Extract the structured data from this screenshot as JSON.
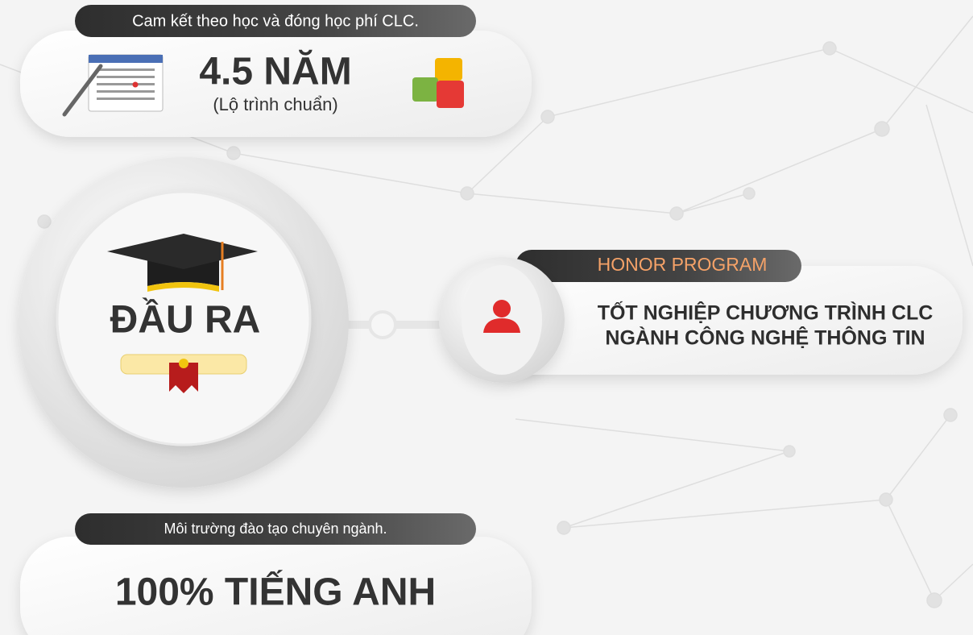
{
  "top_card": {
    "label": "Cam kết theo học và đóng học phí CLC.",
    "value": "4.5 NĂM",
    "note": "(Lộ trình chuẩn)"
  },
  "center": {
    "title": "ĐẦU RA"
  },
  "honor_card": {
    "label": "HONOR PROGRAM",
    "lines": [
      "TỐT NGHIỆP CHƯƠNG TRÌNH CLC",
      "NGÀNH CÔNG NGHỆ THÔNG TIN"
    ]
  },
  "bottom_card": {
    "label": "Môi trường đào tạo chuyên ngành.",
    "value": "100% TIẾNG ANH"
  }
}
